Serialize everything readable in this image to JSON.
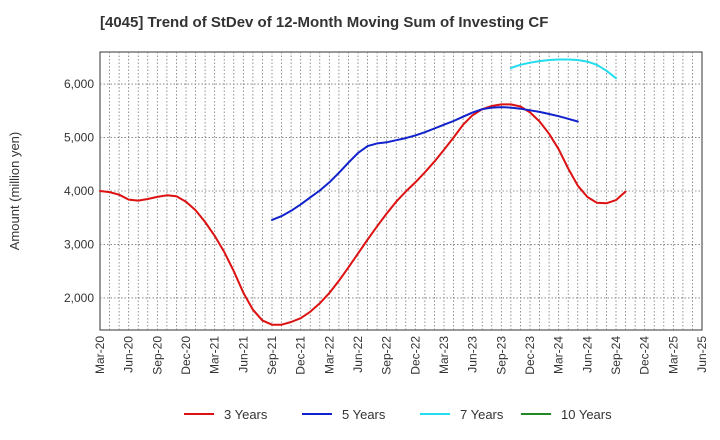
{
  "chart_data": {
    "type": "line",
    "title": "[4045]  Trend of StDev of 12-Month Moving Sum of Investing CF",
    "xlabel": "",
    "ylabel": "Amount (million yen)",
    "ylim": [
      1400,
      6600
    ],
    "yticks": [
      2000,
      3000,
      4000,
      5000,
      6000
    ],
    "ytick_labels": [
      "2,000",
      "3,000",
      "4,000",
      "5,000",
      "6,000"
    ],
    "x_start": "Mar-20",
    "x_end": "Jun-25",
    "xtick_labels": [
      "Mar-20",
      "Jun-20",
      "Sep-20",
      "Dec-20",
      "Mar-21",
      "Jun-21",
      "Sep-21",
      "Dec-21",
      "Mar-22",
      "Jun-22",
      "Sep-22",
      "Dec-22",
      "Mar-23",
      "Jun-23",
      "Sep-23",
      "Dec-23",
      "Mar-24",
      "Jun-24",
      "Sep-24",
      "Dec-24",
      "Mar-25",
      "Jun-25"
    ],
    "grid": true,
    "legend_position": "bottom",
    "series": [
      {
        "name": "3 Years",
        "color": "#dd1111",
        "points": [
          [
            "Mar-20",
            4000
          ],
          [
            "Apr-20",
            3980
          ],
          [
            "May-20",
            3930
          ],
          [
            "Jun-20",
            3840
          ],
          [
            "Jul-20",
            3820
          ],
          [
            "Aug-20",
            3850
          ],
          [
            "Sep-20",
            3890
          ],
          [
            "Oct-20",
            3920
          ],
          [
            "Nov-20",
            3900
          ],
          [
            "Dec-20",
            3800
          ],
          [
            "Jan-21",
            3640
          ],
          [
            "Feb-21",
            3420
          ],
          [
            "Mar-21",
            3160
          ],
          [
            "Apr-21",
            2860
          ],
          [
            "May-21",
            2500
          ],
          [
            "Jun-21",
            2100
          ],
          [
            "Jul-21",
            1780
          ],
          [
            "Aug-21",
            1580
          ],
          [
            "Sep-21",
            1500
          ],
          [
            "Oct-21",
            1500
          ],
          [
            "Nov-21",
            1550
          ],
          [
            "Dec-21",
            1620
          ],
          [
            "Jan-22",
            1740
          ],
          [
            "Feb-22",
            1900
          ],
          [
            "Mar-22",
            2090
          ],
          [
            "Apr-22",
            2320
          ],
          [
            "May-22",
            2570
          ],
          [
            "Jun-22",
            2830
          ],
          [
            "Jul-22",
            3090
          ],
          [
            "Aug-22",
            3340
          ],
          [
            "Sep-22",
            3580
          ],
          [
            "Oct-22",
            3800
          ],
          [
            "Nov-22",
            3990
          ],
          [
            "Dec-22",
            4160
          ],
          [
            "Jan-23",
            4350
          ],
          [
            "Feb-23",
            4550
          ],
          [
            "Mar-23",
            4770
          ],
          [
            "Apr-23",
            5000
          ],
          [
            "May-23",
            5240
          ],
          [
            "Jun-23",
            5420
          ],
          [
            "Jul-23",
            5530
          ],
          [
            "Aug-23",
            5590
          ],
          [
            "Sep-23",
            5620
          ],
          [
            "Oct-23",
            5620
          ],
          [
            "Nov-23",
            5580
          ],
          [
            "Dec-23",
            5470
          ],
          [
            "Jan-24",
            5300
          ],
          [
            "Feb-24",
            5070
          ],
          [
            "Mar-24",
            4780
          ],
          [
            "Apr-24",
            4420
          ],
          [
            "May-24",
            4100
          ],
          [
            "Jun-24",
            3890
          ],
          [
            "Jul-24",
            3780
          ],
          [
            "Aug-24",
            3770
          ],
          [
            "Sep-24",
            3830
          ],
          [
            "Oct-24",
            3990
          ]
        ]
      },
      {
        "name": "5 Years",
        "color": "#1122cc",
        "points": [
          [
            "Sep-21",
            3460
          ],
          [
            "Oct-21",
            3530
          ],
          [
            "Nov-21",
            3630
          ],
          [
            "Dec-21",
            3750
          ],
          [
            "Jan-22",
            3880
          ],
          [
            "Feb-22",
            4010
          ],
          [
            "Mar-22",
            4160
          ],
          [
            "Apr-22",
            4340
          ],
          [
            "May-22",
            4530
          ],
          [
            "Jun-22",
            4710
          ],
          [
            "Jul-22",
            4840
          ],
          [
            "Aug-22",
            4890
          ],
          [
            "Sep-22",
            4910
          ],
          [
            "Oct-22",
            4950
          ],
          [
            "Nov-22",
            4990
          ],
          [
            "Dec-22",
            5040
          ],
          [
            "Jan-23",
            5100
          ],
          [
            "Feb-23",
            5170
          ],
          [
            "Mar-23",
            5240
          ],
          [
            "Apr-23",
            5310
          ],
          [
            "May-23",
            5390
          ],
          [
            "Jun-23",
            5470
          ],
          [
            "Jul-23",
            5530
          ],
          [
            "Aug-23",
            5560
          ],
          [
            "Sep-23",
            5570
          ],
          [
            "Oct-23",
            5560
          ],
          [
            "Nov-23",
            5540
          ],
          [
            "Dec-23",
            5510
          ],
          [
            "Jan-24",
            5480
          ],
          [
            "Feb-24",
            5440
          ],
          [
            "Mar-24",
            5400
          ],
          [
            "Apr-24",
            5350
          ],
          [
            "May-24",
            5300
          ]
        ]
      },
      {
        "name": "7 Years",
        "color": "#22ddee",
        "points": [
          [
            "Oct-23",
            6300
          ],
          [
            "Nov-23",
            6360
          ],
          [
            "Dec-23",
            6400
          ],
          [
            "Jan-24",
            6430
          ],
          [
            "Feb-24",
            6450
          ],
          [
            "Mar-24",
            6460
          ],
          [
            "Apr-24",
            6460
          ],
          [
            "May-24",
            6450
          ],
          [
            "Jun-24",
            6420
          ],
          [
            "Jul-24",
            6360
          ],
          [
            "Aug-24",
            6250
          ],
          [
            "Sep-24",
            6110
          ]
        ]
      },
      {
        "name": "10 Years",
        "color": "#228822",
        "points": []
      }
    ]
  }
}
